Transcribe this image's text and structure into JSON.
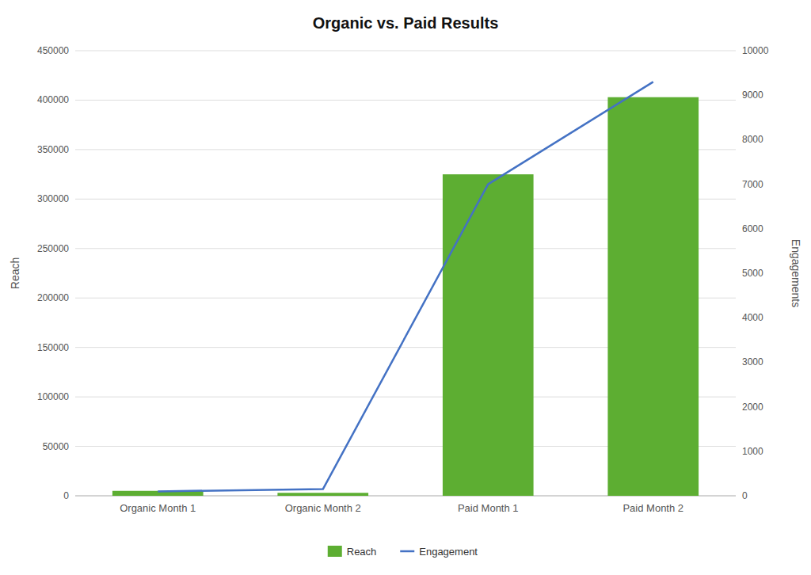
{
  "chart_data": {
    "type": "bar",
    "title": "Organic vs. Paid Results",
    "categories": [
      "Organic Month 1",
      "Organic Month 2",
      "Paid Month 1",
      "Paid Month 2"
    ],
    "series": [
      {
        "name": "Reach",
        "type": "bar",
        "color": "#5DAE32",
        "values": [
          5000,
          3000,
          325000,
          403000
        ]
      },
      {
        "name": "Engagement",
        "type": "line",
        "axis": "y2",
        "color": "#4472C4",
        "values": [
          100,
          150,
          7000,
          9300
        ]
      }
    ],
    "ylabel": "Reach",
    "y2label": "Engagements",
    "ylim": [
      0,
      450000
    ],
    "yticks": [
      0,
      50000,
      100000,
      150000,
      200000,
      250000,
      300000,
      350000,
      400000,
      450000
    ],
    "y2lim": [
      0,
      10000
    ],
    "y2ticks": [
      0,
      1000,
      2000,
      3000,
      4000,
      5000,
      6000,
      7000,
      8000,
      9000,
      10000
    ],
    "grid": true,
    "legend": "bottom"
  }
}
